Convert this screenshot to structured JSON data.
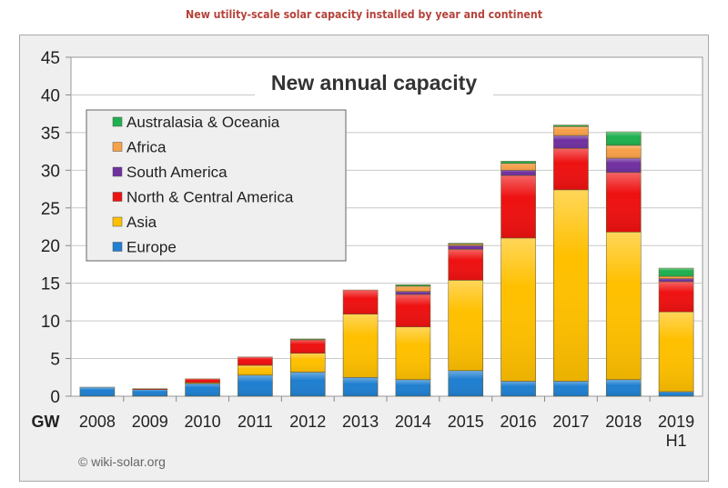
{
  "page_title": "New utility-scale solar capacity installed by year and continent",
  "credit": "© wiki-solar.org",
  "chart_data": {
    "type": "bar",
    "stacked": true,
    "title": "New annual capacity",
    "ylabel": "GW",
    "ylim": [
      0,
      45
    ],
    "yticks": [
      0,
      5,
      10,
      15,
      20,
      25,
      30,
      35,
      40,
      45
    ],
    "grid": true,
    "legend_position": "top-left",
    "categories": [
      "2008",
      "2009",
      "2010",
      "2011",
      "2012",
      "2013",
      "2014",
      "2015",
      "2016",
      "2017",
      "2018",
      "2019 H1"
    ],
    "series": [
      {
        "name": "Europe",
        "color": "#1f7fd0",
        "values": [
          1.2,
          0.9,
          1.7,
          2.8,
          3.2,
          2.5,
          2.2,
          3.4,
          2.0,
          2.0,
          2.2,
          0.6
        ]
      },
      {
        "name": "Asia",
        "color": "#ffc000",
        "values": [
          0,
          0,
          0.1,
          1.3,
          2.5,
          8.4,
          7.0,
          12.0,
          19.0,
          25.4,
          19.6,
          10.6
        ]
      },
      {
        "name": "North & Central America",
        "color": "#ee1111",
        "values": [
          0,
          0.1,
          0.5,
          1.1,
          1.8,
          3.2,
          4.3,
          4.1,
          8.3,
          5.5,
          7.9,
          4.0
        ]
      },
      {
        "name": "South America",
        "color": "#7030a0",
        "values": [
          0,
          0,
          0,
          0,
          0,
          0,
          0.4,
          0.5,
          0.7,
          1.7,
          1.9,
          0.4
        ]
      },
      {
        "name": "Africa",
        "color": "#f7a04a",
        "values": [
          0,
          0,
          0,
          0,
          0,
          0,
          0.7,
          0.2,
          0.9,
          1.2,
          1.7,
          0.3
        ]
      },
      {
        "name": "Australasia & Oceania",
        "color": "#1fb050",
        "values": [
          0,
          0,
          0,
          0,
          0.1,
          0,
          0.2,
          0.1,
          0.3,
          0.2,
          1.8,
          1.1
        ]
      }
    ]
  }
}
